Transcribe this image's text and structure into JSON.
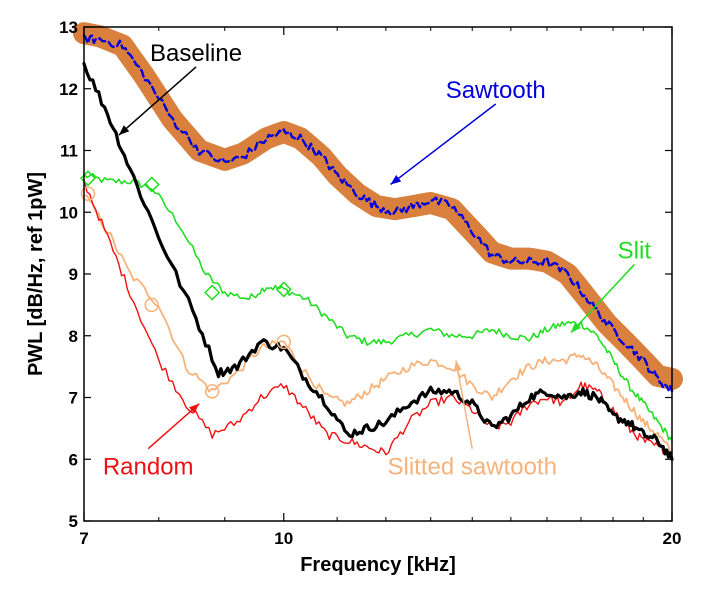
{
  "chart_data": {
    "type": "line",
    "xlabel": "Frequency [kHz]",
    "ylabel": "PWL [dB/Hz, ref 1pW]",
    "x_scale": "log",
    "xlim": [
      7,
      20
    ],
    "ylim": [
      5,
      13
    ],
    "x_ticks": [
      7,
      10,
      20
    ],
    "y_ticks": [
      5,
      6,
      7,
      8,
      9,
      10,
      11,
      12,
      13
    ],
    "grid": false,
    "colors": {
      "baseline": "#000000",
      "sawtooth": "#0000dd",
      "sawtooth_band": "#d9803e",
      "slit": "#22dd22",
      "random": "#ee1111",
      "slitted_sawtooth": "#f7b27a"
    },
    "series": [
      {
        "name": "Baseline",
        "x": [
          7.0,
          7.3,
          7.6,
          8.0,
          8.5,
          8.9,
          9.2,
          9.6,
          10.0,
          10.4,
          10.8,
          11.2,
          11.6,
          12.0,
          12.5,
          13.0,
          13.5,
          14.0,
          14.5,
          15.0,
          15.5,
          16.0,
          16.5,
          17.0,
          17.5,
          18.0,
          18.5,
          19.0,
          19.5,
          20.0
        ],
        "y": [
          12.4,
          11.6,
          10.7,
          9.6,
          8.4,
          7.4,
          7.5,
          7.9,
          7.8,
          7.3,
          6.9,
          6.4,
          6.5,
          6.6,
          6.9,
          7.1,
          7.1,
          6.9,
          6.5,
          6.7,
          7.0,
          7.1,
          7.0,
          7.1,
          7.0,
          6.7,
          6.6,
          6.4,
          6.3,
          6.0
        ]
      },
      {
        "name": "Sawtooth",
        "x": [
          7.0,
          7.2,
          7.5,
          7.8,
          8.2,
          8.6,
          9.0,
          9.3,
          9.7,
          10.0,
          10.3,
          10.7,
          11.0,
          11.4,
          11.8,
          12.2,
          12.6,
          13.0,
          13.5,
          14.0,
          14.5,
          15.0,
          15.5,
          16.0,
          16.6,
          17.2,
          17.8,
          18.4,
          19.0,
          19.5,
          20.0
        ],
        "y": [
          12.8,
          12.8,
          12.7,
          12.2,
          11.5,
          11.0,
          10.8,
          10.9,
          11.2,
          11.3,
          11.2,
          10.9,
          10.6,
          10.3,
          10.1,
          10.0,
          10.1,
          10.2,
          10.1,
          9.7,
          9.3,
          9.2,
          9.2,
          9.2,
          9.0,
          8.6,
          8.2,
          7.9,
          7.6,
          7.3,
          7.1
        ]
      },
      {
        "name": "Sawtooth band",
        "x": [
          7.0,
          7.2,
          7.5,
          7.8,
          8.2,
          8.6,
          9.0,
          9.3,
          9.7,
          10.0,
          10.3,
          10.7,
          11.0,
          11.4,
          11.8,
          12.2,
          12.6,
          13.0,
          13.5,
          14.0,
          14.5,
          15.0,
          15.5,
          16.0,
          16.6,
          17.2,
          17.8,
          18.4,
          19.0,
          19.5,
          20.0
        ],
        "y": [
          12.9,
          12.85,
          12.7,
          12.2,
          11.5,
          11.0,
          10.85,
          10.95,
          11.2,
          11.3,
          11.2,
          10.9,
          10.6,
          10.3,
          10.1,
          10.05,
          10.1,
          10.15,
          10.05,
          9.7,
          9.35,
          9.25,
          9.25,
          9.2,
          9.0,
          8.6,
          8.2,
          7.9,
          7.6,
          7.35,
          7.3
        ]
      },
      {
        "name": "Slit",
        "x": [
          7.0,
          7.3,
          7.6,
          7.9,
          8.3,
          8.7,
          9.0,
          9.4,
          9.7,
          10.0,
          10.4,
          10.8,
          11.2,
          11.6,
          12.0,
          12.5,
          13.0,
          13.5,
          14.0,
          14.5,
          15.0,
          15.5,
          16.0,
          16.5,
          17.0,
          17.5,
          18.0,
          18.5,
          19.0,
          19.5,
          20.0
        ],
        "y": [
          10.6,
          10.5,
          10.5,
          10.4,
          9.8,
          9.0,
          8.7,
          8.6,
          8.8,
          8.75,
          8.6,
          8.3,
          8.0,
          7.9,
          7.9,
          8.0,
          8.1,
          8.0,
          8.0,
          8.1,
          8.0,
          7.95,
          8.1,
          8.2,
          8.2,
          8.0,
          7.6,
          7.2,
          6.9,
          6.6,
          6.3
        ]
      },
      {
        "name": "Random",
        "x": [
          7.0,
          7.3,
          7.6,
          8.0,
          8.4,
          8.8,
          9.2,
          9.6,
          10.0,
          10.4,
          10.8,
          11.2,
          11.6,
          12.0,
          12.5,
          13.0,
          13.5,
          14.0,
          14.5,
          15.0,
          15.5,
          16.0,
          16.5,
          17.0,
          17.5,
          18.0,
          18.5,
          19.0,
          19.5,
          20.0
        ],
        "y": [
          10.5,
          9.6,
          8.7,
          7.6,
          6.9,
          6.4,
          6.6,
          7.0,
          7.2,
          6.8,
          6.4,
          6.3,
          6.2,
          6.1,
          6.6,
          6.9,
          7.0,
          6.8,
          6.5,
          6.6,
          6.9,
          7.0,
          6.9,
          7.2,
          7.1,
          6.8,
          6.5,
          6.3,
          6.2,
          6.1
        ]
      },
      {
        "name": "Slitted sawtooth",
        "x": [
          7.0,
          7.3,
          7.6,
          8.0,
          8.4,
          8.8,
          9.2,
          9.6,
          10.0,
          10.4,
          10.8,
          11.2,
          11.6,
          12.0,
          12.5,
          13.0,
          13.5,
          14.0,
          14.5,
          15.0,
          15.5,
          16.0,
          16.5,
          17.0,
          17.5,
          18.0,
          18.5,
          19.0,
          19.5,
          20.0
        ],
        "y": [
          10.3,
          9.7,
          9.0,
          8.5,
          7.5,
          7.1,
          7.4,
          7.8,
          7.9,
          7.4,
          7.0,
          6.9,
          7.1,
          7.3,
          7.5,
          7.6,
          7.5,
          7.2,
          7.0,
          7.3,
          7.5,
          7.6,
          7.6,
          7.7,
          7.5,
          7.2,
          6.9,
          6.6,
          6.4,
          6.1
        ]
      }
    ],
    "markers": [
      {
        "series": "Slit",
        "shape": "diamond",
        "points": [
          [
            7.05,
            10.55
          ],
          [
            7.9,
            10.45
          ],
          [
            8.8,
            8.7
          ],
          [
            10.0,
            8.75
          ]
        ]
      },
      {
        "series": "Slitted sawtooth",
        "shape": "circle",
        "points": [
          [
            7.05,
            10.3
          ],
          [
            7.9,
            8.5
          ],
          [
            8.8,
            7.1
          ],
          [
            10.0,
            7.9
          ]
        ]
      }
    ],
    "annotations": [
      {
        "text": "Baseline",
        "color": "#000000",
        "text_at": [
          8.55,
          12.45
        ],
        "arrow_to": [
          7.45,
          11.25
        ]
      },
      {
        "text": "Sawtooth",
        "color": "#0000dd",
        "text_at": [
          14.6,
          11.85
        ],
        "arrow_to": [
          12.1,
          10.45
        ]
      },
      {
        "text": "Slit",
        "color": "#22dd22",
        "text_at": [
          18.7,
          9.25
        ],
        "arrow_to": [
          16.7,
          8.05
        ]
      },
      {
        "text": "Random",
        "color": "#ee1111",
        "text_at": [
          7.85,
          5.75
        ],
        "arrow_to": [
          8.6,
          6.9
        ]
      },
      {
        "text": "Slitted sawtooth",
        "color": "#f7b27a",
        "text_at": [
          14.0,
          5.75
        ],
        "arrow_to": [
          13.6,
          7.6
        ]
      }
    ]
  }
}
